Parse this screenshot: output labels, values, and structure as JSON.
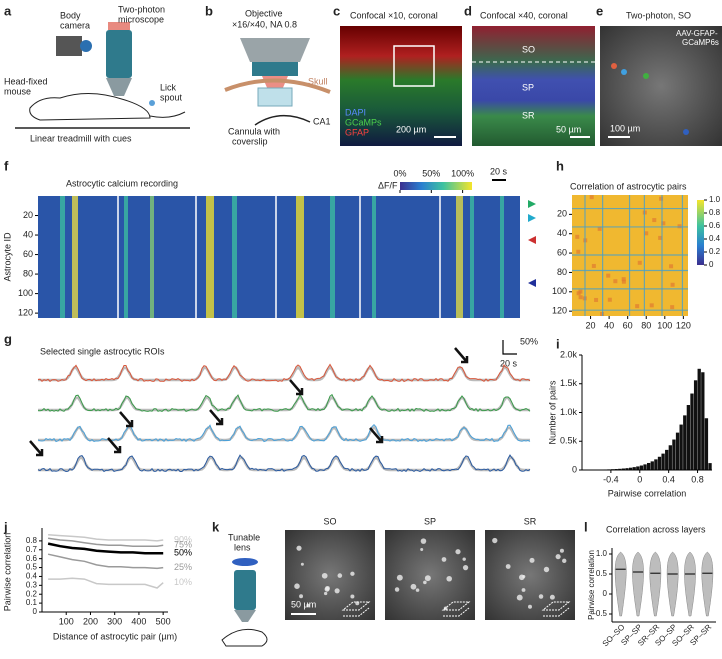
{
  "panel_labels": [
    "a",
    "b",
    "c",
    "d",
    "e",
    "f",
    "g",
    "h",
    "i",
    "j",
    "k",
    "l"
  ],
  "a": {
    "microscope": [
      "Two-photon",
      "microscope"
    ],
    "camera": [
      "Body",
      "camera"
    ],
    "mouse": [
      "Head-fixed",
      "mouse"
    ],
    "spout": [
      "Lick",
      "spout"
    ],
    "treadmill": "Linear treadmill with cues"
  },
  "b": {
    "objective": [
      "Objective",
      "×16/×40, NA 0.8"
    ],
    "skull": "Skull",
    "region": "CA1",
    "cannula": [
      "Cannula with",
      "coverslip"
    ]
  },
  "c": {
    "title": "Confocal ×10, coronal",
    "stains": [
      "DAPI",
      "GCaMPs",
      "GFAP"
    ],
    "scale": "200 µm"
  },
  "d": {
    "title": "Confocal ×40, coronal",
    "layers": [
      "SO",
      "SP",
      "SR"
    ],
    "scale": "50 µm"
  },
  "e": {
    "title": "Two-photon, SO",
    "label": [
      "AAV-GFAP-",
      "GCaMP6s"
    ],
    "scale": "100 µm"
  },
  "f": {
    "title": "Astrocytic calcium recording",
    "colorbar_label": "ΔF/F",
    "clim": [
      0,
      115
    ],
    "colorbar_ticks": [
      {
        "value": 0,
        "label": "0%"
      },
      {
        "value": 50,
        "label": "50%"
      },
      {
        "value": 100,
        "label": "100%"
      }
    ],
    "scale": "20 s",
    "ylabel": "Astrocyte ID",
    "ylim": [
      0,
      125
    ],
    "yticks": [
      20,
      40,
      60,
      80,
      100,
      120
    ]
  },
  "g": {
    "title": "Selected single astrocytic ROIs",
    "scale_y": "50%",
    "scale_x": "20 s"
  },
  "k": {
    "lens": [
      "Tunable",
      "lens"
    ],
    "layers": [
      "SO",
      "SP",
      "SR"
    ],
    "scale": "50 µm"
  },
  "chart_data": [
    {
      "type": "heatmap",
      "title": "Correlation of astrocytic pairs",
      "xlim": [
        0,
        125
      ],
      "ylim": [
        0,
        125
      ],
      "xticks": [
        20,
        40,
        60,
        80,
        100,
        120
      ],
      "yticks": [
        20,
        40,
        60,
        80,
        100,
        120
      ],
      "clim": [
        0,
        1
      ],
      "cticks": [
        0,
        0.2,
        0.4,
        0.6,
        0.8,
        {
          "value": 1,
          "label": "1.0"
        }
      ]
    },
    {
      "type": "histogram",
      "xlabel": "Pairwise correlation",
      "ylabel": "Number of pairs",
      "color": "#111111",
      "bins": [
        -0.8,
        -0.75,
        -0.7,
        -0.65,
        -0.6,
        -0.55,
        -0.5,
        -0.45,
        -0.4,
        -0.35,
        -0.3,
        -0.25,
        -0.2,
        -0.15,
        -0.1,
        -0.05,
        0,
        0.05,
        0.1,
        0.15,
        0.2,
        0.25,
        0.3,
        0.35,
        0.4,
        0.45,
        0.5,
        0.55,
        0.6,
        0.65,
        0.7,
        0.75,
        0.8,
        0.85,
        0.9,
        0.95,
        1.0
      ],
      "values": [
        0,
        2,
        3,
        4,
        5,
        7,
        9,
        11,
        14,
        17,
        21,
        26,
        32,
        40,
        50,
        62,
        78,
        98,
        122,
        150,
        185,
        230,
        285,
        350,
        430,
        530,
        650,
        790,
        950,
        1130,
        1330,
        1560,
        1760,
        1700,
        900,
        120
      ],
      "xlim": [
        -0.8,
        1.0
      ],
      "xticks": [
        -0.4,
        0,
        0.4,
        0.8
      ],
      "ylim": [
        0,
        2000
      ],
      "yticks": [
        0,
        {
          "value": 500,
          "label": "0.5k"
        },
        {
          "value": 1000,
          "label": "1.0k"
        },
        {
          "value": 1500,
          "label": "1.5k"
        },
        {
          "value": 2000,
          "label": "2.0k"
        }
      ]
    },
    {
      "type": "line",
      "xlabel": "Distance of astrocytic pair (µm)",
      "ylabel": "Pairwise correlation",
      "x": [
        25,
        75,
        125,
        175,
        225,
        275,
        325,
        375,
        425,
        475,
        500
      ],
      "series": [
        {
          "name": "90%",
          "color": "#c8c8c8",
          "values": [
            0.87,
            0.86,
            0.85,
            0.84,
            0.82,
            0.81,
            0.81,
            0.81,
            0.81,
            0.8,
            0.81
          ]
        },
        {
          "name": "75%",
          "color": "#9a9a9a",
          "values": [
            0.83,
            0.81,
            0.8,
            0.78,
            0.76,
            0.75,
            0.75,
            0.74,
            0.74,
            0.74,
            0.75
          ]
        },
        {
          "name": "50%",
          "color": "#000000",
          "values": [
            0.77,
            0.74,
            0.72,
            0.71,
            0.69,
            0.68,
            0.67,
            0.67,
            0.66,
            0.66,
            0.66
          ]
        },
        {
          "name": "25%",
          "color": "#9a9a9a",
          "values": [
            0.65,
            0.62,
            0.59,
            0.57,
            0.53,
            0.51,
            0.51,
            0.5,
            0.5,
            0.49,
            0.5
          ]
        },
        {
          "name": "10%",
          "color": "#c8c8c8",
          "values": [
            0.37,
            0.37,
            0.38,
            0.37,
            0.32,
            0.31,
            0.31,
            0.31,
            0.31,
            0.27,
            0.33
          ]
        }
      ],
      "xlim": [
        0,
        520
      ],
      "xticks": [
        100,
        200,
        300,
        400,
        500
      ],
      "ylim": [
        0,
        0.9
      ],
      "yticks": [
        0,
        0.1,
        0.2,
        0.3,
        0.4,
        0.5,
        0.6,
        0.7,
        0.8
      ]
    },
    {
      "type": "violin",
      "title": "Correlation across layers",
      "ylabel": "Pairwise correlation",
      "color": "#bdbdbd",
      "categories": [
        "SO–SO",
        "SP–SP",
        "SR–SR",
        "SO–SP",
        "SO–SR",
        "SP–SR"
      ],
      "values": [
        0.62,
        0.55,
        0.52,
        0.5,
        0.5,
        0.52
      ],
      "ylim": [
        -0.7,
        1.15
      ],
      "yticks": [
        -0.5,
        0,
        0.5,
        {
          "value": 1,
          "label": "1.0"
        }
      ]
    }
  ]
}
